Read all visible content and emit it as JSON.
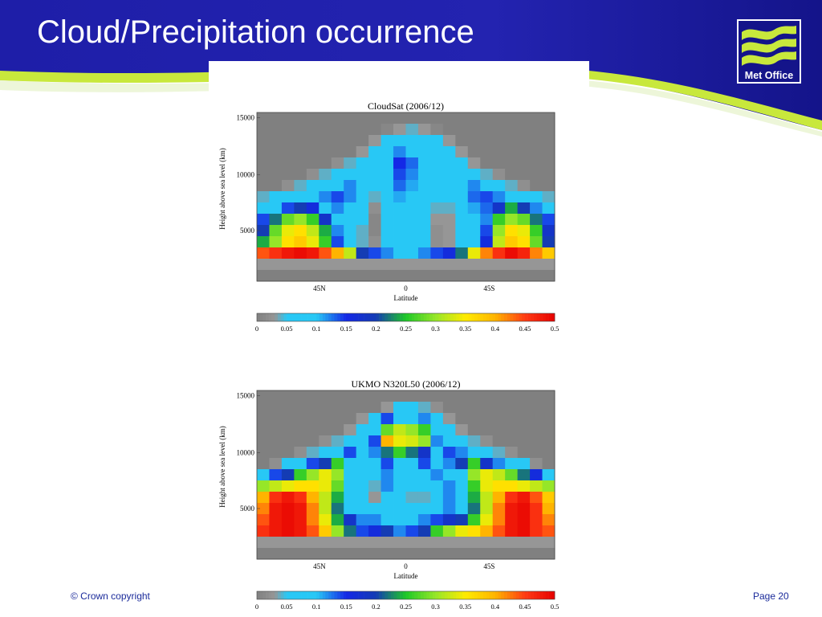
{
  "slide": {
    "title": "Cloud/Precipitation occurrence",
    "logo_text": "Met Office",
    "copyright": "© Crown copyright",
    "page": "Page 20"
  },
  "colors": {
    "header_blue": "#1a1a9e",
    "wave_green": "#c8e83c",
    "accent_text": "#1a2a9a"
  },
  "chart_data": [
    {
      "type": "heatmap",
      "title": "CloudSat (2006/12)",
      "xlabel": "Latitude",
      "ylabel": "Height above sea level (km)",
      "x_ticks": [
        "45N",
        "0",
        "45S"
      ],
      "y_ticks": [
        "5000",
        "10000",
        "15000"
      ],
      "colorbar": {
        "ticks": [
          "0",
          "0.05",
          "0.1",
          "0.15",
          "0.2",
          "0.25",
          "0.3",
          "0.35",
          "0.4",
          "0.45",
          "0.5"
        ],
        "range": [
          0,
          0.5
        ]
      },
      "grid": {
        "cols": 24,
        "rows": 15,
        "values": [
          [
            0.0,
            0.0,
            0.0,
            0.0,
            0.0,
            0.0,
            0.0,
            0.0,
            0.0,
            0.0,
            0.0,
            0.0,
            0.0,
            0.0,
            0.0,
            0.0,
            0.0,
            0.0,
            0.0,
            0.0,
            0.0,
            0.0,
            0.0,
            0.0
          ],
          [
            0.0,
            0.0,
            0.0,
            0.0,
            0.0,
            0.0,
            0.0,
            0.0,
            0.0,
            0.0,
            0.01,
            0.03,
            0.04,
            0.03,
            0.01,
            0.0,
            0.0,
            0.0,
            0.0,
            0.0,
            0.0,
            0.0,
            0.0,
            0.0
          ],
          [
            0.0,
            0.0,
            0.0,
            0.0,
            0.0,
            0.0,
            0.0,
            0.0,
            0.0,
            0.03,
            0.05,
            0.07,
            0.07,
            0.06,
            0.05,
            0.03,
            0.0,
            0.0,
            0.0,
            0.0,
            0.0,
            0.0,
            0.0,
            0.0
          ],
          [
            0.0,
            0.0,
            0.0,
            0.0,
            0.0,
            0.0,
            0.0,
            0.0,
            0.03,
            0.06,
            0.07,
            0.12,
            0.1,
            0.08,
            0.06,
            0.05,
            0.03,
            0.0,
            0.0,
            0.0,
            0.0,
            0.0,
            0.0,
            0.0
          ],
          [
            0.0,
            0.0,
            0.0,
            0.0,
            0.0,
            0.0,
            0.02,
            0.04,
            0.06,
            0.07,
            0.08,
            0.15,
            0.13,
            0.1,
            0.07,
            0.06,
            0.05,
            0.03,
            0.0,
            0.0,
            0.0,
            0.0,
            0.0,
            0.0
          ],
          [
            0.0,
            0.0,
            0.0,
            0.0,
            0.02,
            0.04,
            0.06,
            0.08,
            0.1,
            0.07,
            0.08,
            0.14,
            0.12,
            0.09,
            0.07,
            0.06,
            0.07,
            0.06,
            0.04,
            0.02,
            0.0,
            0.0,
            0.0,
            0.0
          ],
          [
            0.0,
            0.0,
            0.02,
            0.04,
            0.06,
            0.08,
            0.1,
            0.12,
            0.1,
            0.06,
            0.07,
            0.13,
            0.11,
            0.08,
            0.06,
            0.06,
            0.09,
            0.12,
            0.09,
            0.06,
            0.04,
            0.02,
            0.0,
            0.0
          ],
          [
            0.04,
            0.05,
            0.06,
            0.08,
            0.1,
            0.12,
            0.14,
            0.12,
            0.08,
            0.04,
            0.06,
            0.11,
            0.1,
            0.07,
            0.05,
            0.05,
            0.08,
            0.13,
            0.14,
            0.12,
            0.09,
            0.06,
            0.05,
            0.04
          ],
          [
            0.08,
            0.1,
            0.14,
            0.2,
            0.16,
            0.1,
            0.12,
            0.1,
            0.06,
            0.02,
            0.05,
            0.1,
            0.09,
            0.06,
            0.04,
            0.04,
            0.07,
            0.11,
            0.13,
            0.18,
            0.24,
            0.2,
            0.12,
            0.08
          ],
          [
            0.14,
            0.22,
            0.28,
            0.3,
            0.26,
            0.18,
            0.1,
            0.08,
            0.05,
            0.01,
            0.05,
            0.1,
            0.08,
            0.05,
            0.03,
            0.03,
            0.06,
            0.1,
            0.12,
            0.26,
            0.3,
            0.28,
            0.22,
            0.14
          ],
          [
            0.2,
            0.28,
            0.34,
            0.36,
            0.32,
            0.24,
            0.12,
            0.07,
            0.04,
            0.01,
            0.05,
            0.09,
            0.08,
            0.05,
            0.02,
            0.03,
            0.05,
            0.09,
            0.14,
            0.3,
            0.36,
            0.34,
            0.26,
            0.18
          ],
          [
            0.24,
            0.3,
            0.36,
            0.38,
            0.34,
            0.26,
            0.14,
            0.07,
            0.04,
            0.02,
            0.05,
            0.09,
            0.08,
            0.05,
            0.02,
            0.03,
            0.05,
            0.08,
            0.16,
            0.32,
            0.38,
            0.36,
            0.28,
            0.2
          ],
          [
            0.44,
            0.46,
            0.48,
            0.49,
            0.48,
            0.44,
            0.4,
            0.32,
            0.2,
            0.14,
            0.12,
            0.1,
            0.1,
            0.12,
            0.14,
            0.16,
            0.22,
            0.34,
            0.42,
            0.46,
            0.49,
            0.47,
            0.42,
            0.38
          ],
          [
            0.03,
            0.03,
            0.03,
            0.03,
            0.03,
            0.03,
            0.03,
            0.03,
            0.03,
            0.03,
            0.03,
            0.03,
            0.03,
            0.03,
            0.03,
            0.03,
            0.03,
            0.03,
            0.03,
            0.03,
            0.03,
            0.03,
            0.03,
            0.03
          ],
          [
            0.0,
            0.0,
            0.0,
            0.0,
            0.0,
            0.0,
            0.0,
            0.0,
            0.0,
            0.0,
            0.0,
            0.0,
            0.0,
            0.0,
            0.0,
            0.0,
            0.0,
            0.0,
            0.0,
            0.0,
            0.0,
            0.0,
            0.0,
            0.0
          ]
        ]
      }
    },
    {
      "type": "heatmap",
      "title": "UKMO N320L50 (2006/12)",
      "xlabel": "Latitude",
      "ylabel": "Height above sea level (km)",
      "x_ticks": [
        "45N",
        "0",
        "45S"
      ],
      "y_ticks": [
        "5000",
        "10000",
        "15000"
      ],
      "colorbar": {
        "ticks": [
          "0",
          "0.05",
          "0.1",
          "0.15",
          "0.2",
          "0.25",
          "0.3",
          "0.35",
          "0.4",
          "0.45",
          "0.5"
        ],
        "range": [
          0,
          0.5
        ]
      },
      "grid": {
        "cols": 24,
        "rows": 15,
        "values": [
          [
            0.0,
            0.0,
            0.0,
            0.0,
            0.0,
            0.0,
            0.0,
            0.0,
            0.0,
            0.0,
            0.0,
            0.0,
            0.0,
            0.0,
            0.0,
            0.0,
            0.0,
            0.0,
            0.0,
            0.0,
            0.0,
            0.0,
            0.0,
            0.0
          ],
          [
            0.0,
            0.0,
            0.0,
            0.0,
            0.0,
            0.0,
            0.0,
            0.0,
            0.0,
            0.0,
            0.03,
            0.06,
            0.06,
            0.04,
            0.02,
            0.0,
            0.0,
            0.0,
            0.0,
            0.0,
            0.0,
            0.0,
            0.0,
            0.0
          ],
          [
            0.0,
            0.0,
            0.0,
            0.0,
            0.0,
            0.0,
            0.0,
            0.0,
            0.03,
            0.06,
            0.14,
            0.08,
            0.07,
            0.12,
            0.06,
            0.03,
            0.0,
            0.0,
            0.0,
            0.0,
            0.0,
            0.0,
            0.0,
            0.0
          ],
          [
            0.0,
            0.0,
            0.0,
            0.0,
            0.0,
            0.0,
            0.0,
            0.03,
            0.06,
            0.1,
            0.28,
            0.32,
            0.3,
            0.26,
            0.1,
            0.06,
            0.03,
            0.0,
            0.0,
            0.0,
            0.0,
            0.0,
            0.0,
            0.0
          ],
          [
            0.0,
            0.0,
            0.0,
            0.0,
            0.0,
            0.02,
            0.04,
            0.07,
            0.1,
            0.14,
            0.4,
            0.34,
            0.33,
            0.3,
            0.12,
            0.1,
            0.07,
            0.04,
            0.02,
            0.0,
            0.0,
            0.0,
            0.0,
            0.0
          ],
          [
            0.0,
            0.0,
            0.0,
            0.02,
            0.04,
            0.07,
            0.1,
            0.14,
            0.08,
            0.12,
            0.22,
            0.26,
            0.22,
            0.18,
            0.1,
            0.14,
            0.12,
            0.09,
            0.06,
            0.04,
            0.02,
            0.0,
            0.0,
            0.0
          ],
          [
            0.0,
            0.02,
            0.05,
            0.08,
            0.14,
            0.2,
            0.26,
            0.1,
            0.06,
            0.08,
            0.14,
            0.1,
            0.1,
            0.14,
            0.08,
            0.12,
            0.2,
            0.26,
            0.18,
            0.12,
            0.08,
            0.05,
            0.02,
            0.0
          ],
          [
            0.08,
            0.14,
            0.2,
            0.26,
            0.3,
            0.34,
            0.3,
            0.08,
            0.06,
            0.06,
            0.12,
            0.06,
            0.06,
            0.06,
            0.12,
            0.08,
            0.1,
            0.3,
            0.34,
            0.32,
            0.28,
            0.22,
            0.16,
            0.1
          ],
          [
            0.3,
            0.32,
            0.34,
            0.36,
            0.36,
            0.34,
            0.28,
            0.08,
            0.05,
            0.04,
            0.12,
            0.05,
            0.05,
            0.05,
            0.05,
            0.12,
            0.08,
            0.26,
            0.34,
            0.36,
            0.36,
            0.34,
            0.32,
            0.3
          ],
          [
            0.4,
            0.46,
            0.48,
            0.46,
            0.4,
            0.32,
            0.24,
            0.08,
            0.05,
            0.03,
            0.1,
            0.05,
            0.04,
            0.04,
            0.05,
            0.12,
            0.08,
            0.24,
            0.32,
            0.4,
            0.46,
            0.48,
            0.44,
            0.38
          ],
          [
            0.42,
            0.48,
            0.49,
            0.48,
            0.42,
            0.32,
            0.22,
            0.1,
            0.06,
            0.05,
            0.08,
            0.07,
            0.06,
            0.05,
            0.06,
            0.12,
            0.1,
            0.22,
            0.32,
            0.42,
            0.48,
            0.49,
            0.46,
            0.4
          ],
          [
            0.44,
            0.48,
            0.49,
            0.48,
            0.42,
            0.34,
            0.24,
            0.18,
            0.12,
            0.12,
            0.1,
            0.1,
            0.1,
            0.12,
            0.14,
            0.18,
            0.2,
            0.26,
            0.34,
            0.42,
            0.48,
            0.49,
            0.46,
            0.42
          ],
          [
            0.46,
            0.48,
            0.49,
            0.48,
            0.44,
            0.38,
            0.3,
            0.22,
            0.14,
            0.16,
            0.2,
            0.12,
            0.14,
            0.2,
            0.26,
            0.3,
            0.34,
            0.36,
            0.4,
            0.44,
            0.48,
            0.49,
            0.46,
            0.44
          ],
          [
            0.03,
            0.03,
            0.03,
            0.03,
            0.03,
            0.03,
            0.03,
            0.03,
            0.03,
            0.03,
            0.03,
            0.03,
            0.03,
            0.03,
            0.03,
            0.03,
            0.03,
            0.03,
            0.03,
            0.03,
            0.03,
            0.03,
            0.03,
            0.03
          ],
          [
            0.0,
            0.0,
            0.0,
            0.0,
            0.0,
            0.0,
            0.0,
            0.0,
            0.0,
            0.0,
            0.0,
            0.0,
            0.0,
            0.0,
            0.0,
            0.0,
            0.0,
            0.0,
            0.0,
            0.0,
            0.0,
            0.0,
            0.0,
            0.0
          ]
        ]
      }
    }
  ]
}
